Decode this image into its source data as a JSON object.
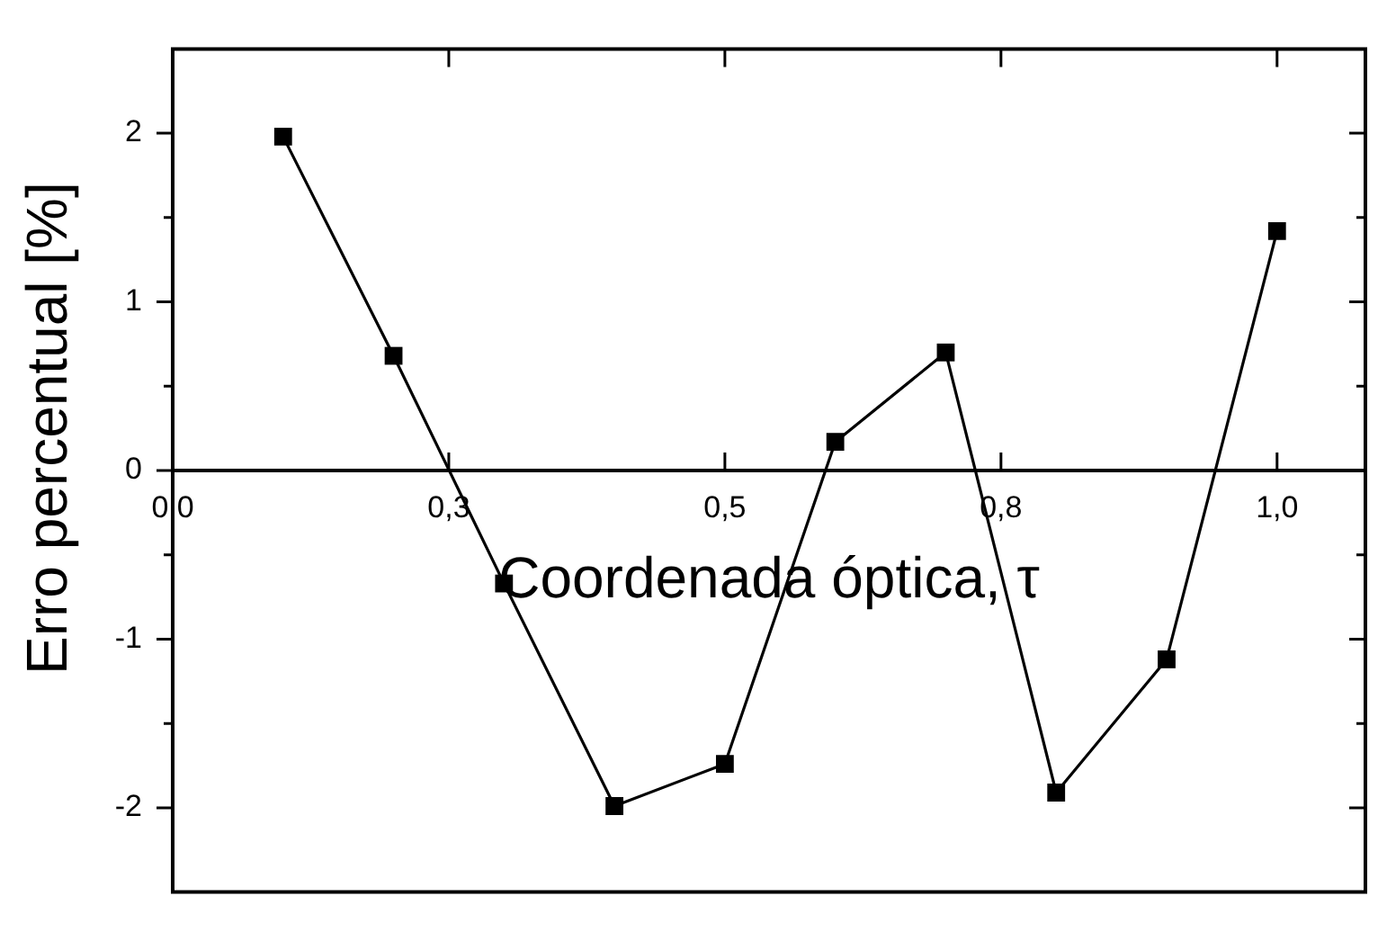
{
  "chart_data": {
    "type": "line",
    "xlabel": "Coordenada óptica, τ",
    "ylabel": "Erro percentual [%]",
    "x": [
      0.1,
      0.2,
      0.3,
      0.4,
      0.5,
      0.6,
      0.7,
      0.8,
      0.9,
      1.0
    ],
    "series": [
      {
        "color": "#000000",
        "values": [
          1.98,
          0.68,
          -0.67,
          -1.99,
          -1.74,
          0.17,
          0.7,
          -1.91,
          -1.12,
          1.42
        ]
      }
    ],
    "xlim": [
      0,
      1.08
    ],
    "xticks": [
      {
        "value": 0,
        "label": "0,0"
      },
      {
        "value": 0.25,
        "label": "0,3"
      },
      {
        "value": 0.5,
        "label": "0,5"
      },
      {
        "value": 0.75,
        "label": "0,8"
      },
      {
        "value": 1,
        "label": "1,0"
      }
    ],
    "ylim": [
      -2.5,
      2.5
    ],
    "yticks": [
      -2,
      {
        "value": -1.5,
        "label": null
      },
      -1,
      {
        "value": -0.5,
        "label": null
      },
      0,
      {
        "value": 0.5,
        "label": null
      },
      1,
      {
        "value": 1.5,
        "label": null
      },
      2
    ],
    "marker": "square",
    "line_style": "solid"
  }
}
